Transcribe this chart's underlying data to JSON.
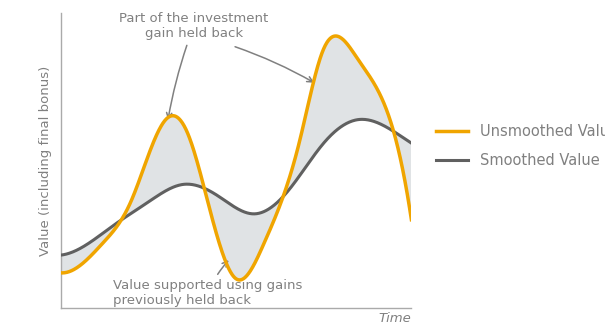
{
  "background_color": "#ffffff",
  "unsmoothed_color": "#f0a500",
  "smoothed_color": "#606060",
  "fill_color": "#c8cdd0",
  "fill_alpha": 0.55,
  "ylabel": "Value (including final bonus)",
  "xlabel": "Time",
  "annotation1_text": "Part of the investment\ngain held back",
  "annotation2_text": "Value supported using gains\npreviously held back",
  "legend_unsmoothed": "Unsmoothed Value",
  "legend_smoothed": "Smoothed Value",
  "label_fontsize": 9.5,
  "annotation_fontsize": 9.5,
  "legend_fontsize": 10.5,
  "ann_color": "#808080",
  "text_color": "#808080"
}
